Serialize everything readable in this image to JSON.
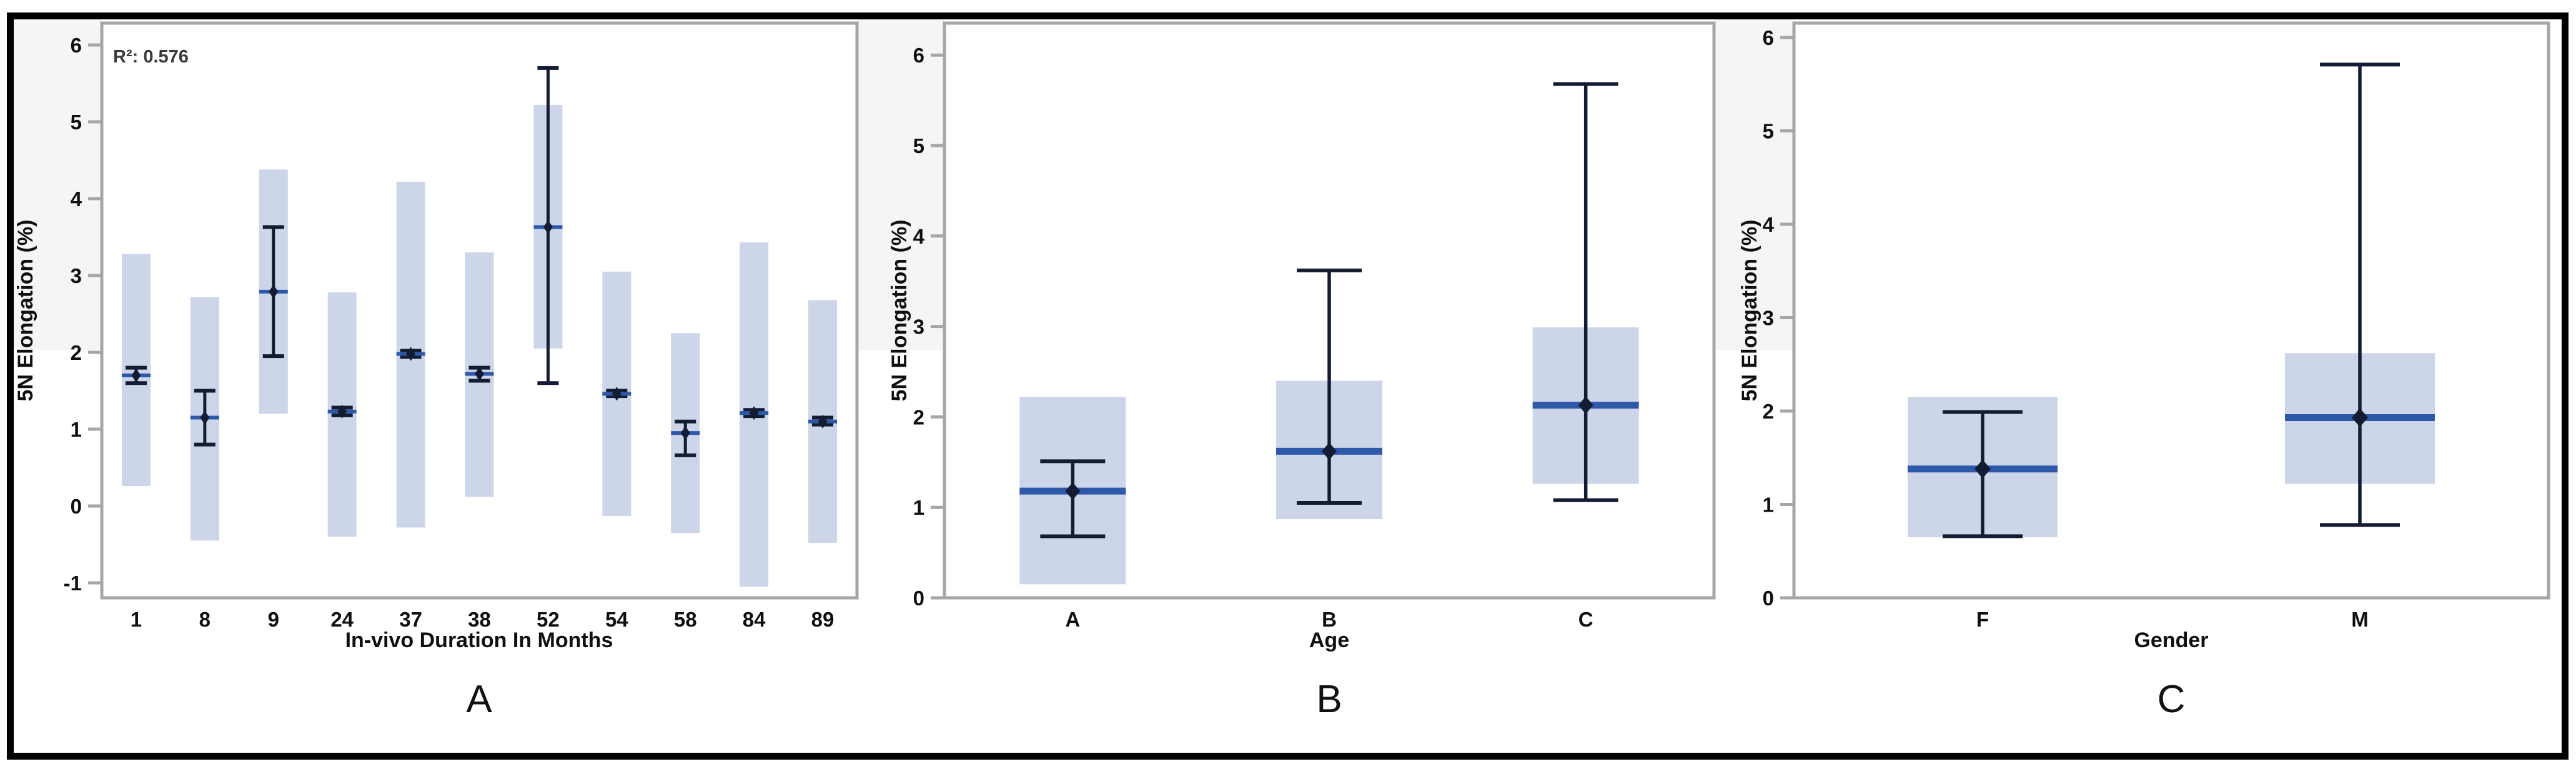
{
  "figure": {
    "ylabel": "5N Elongation (%)",
    "annotation_r2": "R²: 0.576",
    "panel_letters": {
      "a": "A",
      "b": "B",
      "c": "C"
    },
    "xlabels": {
      "a": "In-vivo Duration In Months",
      "b": "Age",
      "c": "Gender"
    }
  },
  "colors": {
    "band": "#cdd5e8",
    "mean_line": "#2e59a8",
    "whisker": "#131c33",
    "marker": "#131c33",
    "panel_border": "#a6a6a6",
    "tick_mark": "#a6a6a6",
    "tick_text": "#0f0f0f",
    "annotation_text": "#3a3a3a",
    "background_band": "#f5f5f6",
    "outer_border": "#000000",
    "plot_background": "#ffffff"
  },
  "chart_data": [
    {
      "type": "box-interval",
      "panel_label": "A",
      "annotation": "R²: 0.576",
      "xlabel": "In-vivo Duration In Months",
      "ylabel": "5N Elongation (%)",
      "ylim": [
        -1.2,
        6.28
      ],
      "yticks": [
        -1,
        0,
        1,
        2,
        3,
        4,
        5,
        6
      ],
      "grid": false,
      "legend": "none",
      "categories": [
        "1",
        "8",
        "9",
        "24",
        "37",
        "38",
        "52",
        "54",
        "58",
        "84",
        "89"
      ],
      "points": [
        {
          "category": "1",
          "band": [
            0.26,
            3.28
          ],
          "whisker": [
            1.6,
            1.8
          ],
          "mean": 1.7
        },
        {
          "category": "8",
          "band": [
            -0.45,
            2.72
          ],
          "whisker": [
            0.8,
            1.5
          ],
          "mean": 1.15
        },
        {
          "category": "9",
          "band": [
            1.2,
            4.38
          ],
          "whisker": [
            1.95,
            3.63
          ],
          "mean": 2.79
        },
        {
          "category": "24",
          "band": [
            -0.4,
            2.78
          ],
          "whisker": [
            1.18,
            1.28
          ],
          "mean": 1.23
        },
        {
          "category": "37",
          "band": [
            -0.28,
            4.22
          ],
          "whisker": [
            1.94,
            2.02
          ],
          "mean": 1.98
        },
        {
          "category": "38",
          "band": [
            0.12,
            3.3
          ],
          "whisker": [
            1.63,
            1.8
          ],
          "mean": 1.72
        },
        {
          "category": "52",
          "band": [
            2.05,
            5.22
          ],
          "whisker": [
            1.6,
            5.7
          ],
          "mean": 3.63
        },
        {
          "category": "54",
          "band": [
            -0.13,
            3.05
          ],
          "whisker": [
            1.43,
            1.5
          ],
          "mean": 1.46
        },
        {
          "category": "58",
          "band": [
            -0.35,
            2.25
          ],
          "whisker": [
            0.66,
            1.1
          ],
          "mean": 0.95
        },
        {
          "category": "84",
          "band": [
            -1.05,
            3.43
          ],
          "whisker": [
            1.17,
            1.25
          ],
          "mean": 1.21
        },
        {
          "category": "89",
          "band": [
            -0.48,
            2.68
          ],
          "whisker": [
            1.06,
            1.15
          ],
          "mean": 1.1
        }
      ]
    },
    {
      "type": "box-interval",
      "panel_label": "B",
      "xlabel": "Age",
      "ylabel": "5N Elongation (%)",
      "ylim": [
        0,
        6.35
      ],
      "yticks": [
        0,
        1,
        2,
        3,
        4,
        5,
        6
      ],
      "grid": false,
      "legend": "none",
      "categories": [
        "A",
        "B",
        "C"
      ],
      "points": [
        {
          "category": "A",
          "band": [
            0.15,
            2.22
          ],
          "whisker": [
            0.68,
            1.51
          ],
          "mean": 1.18
        },
        {
          "category": "B",
          "band": [
            0.87,
            2.4
          ],
          "whisker": [
            1.05,
            3.62
          ],
          "mean": 1.62
        },
        {
          "category": "C",
          "band": [
            1.26,
            2.99
          ],
          "whisker": [
            1.08,
            5.68
          ],
          "mean": 2.13
        }
      ]
    },
    {
      "type": "box-interval",
      "panel_label": "C",
      "xlabel": "Gender",
      "ylabel": "5N Elongation (%)",
      "ylim": [
        0,
        6.15
      ],
      "yticks": [
        0,
        1,
        2,
        3,
        4,
        5,
        6
      ],
      "grid": false,
      "legend": "none",
      "categories": [
        "F",
        "M"
      ],
      "points": [
        {
          "category": "F",
          "band": [
            0.65,
            2.15
          ],
          "whisker": [
            0.66,
            1.99
          ],
          "mean": 1.38
        },
        {
          "category": "M",
          "band": [
            1.22,
            2.62
          ],
          "whisker": [
            0.78,
            5.71
          ],
          "mean": 1.93
        }
      ]
    }
  ]
}
